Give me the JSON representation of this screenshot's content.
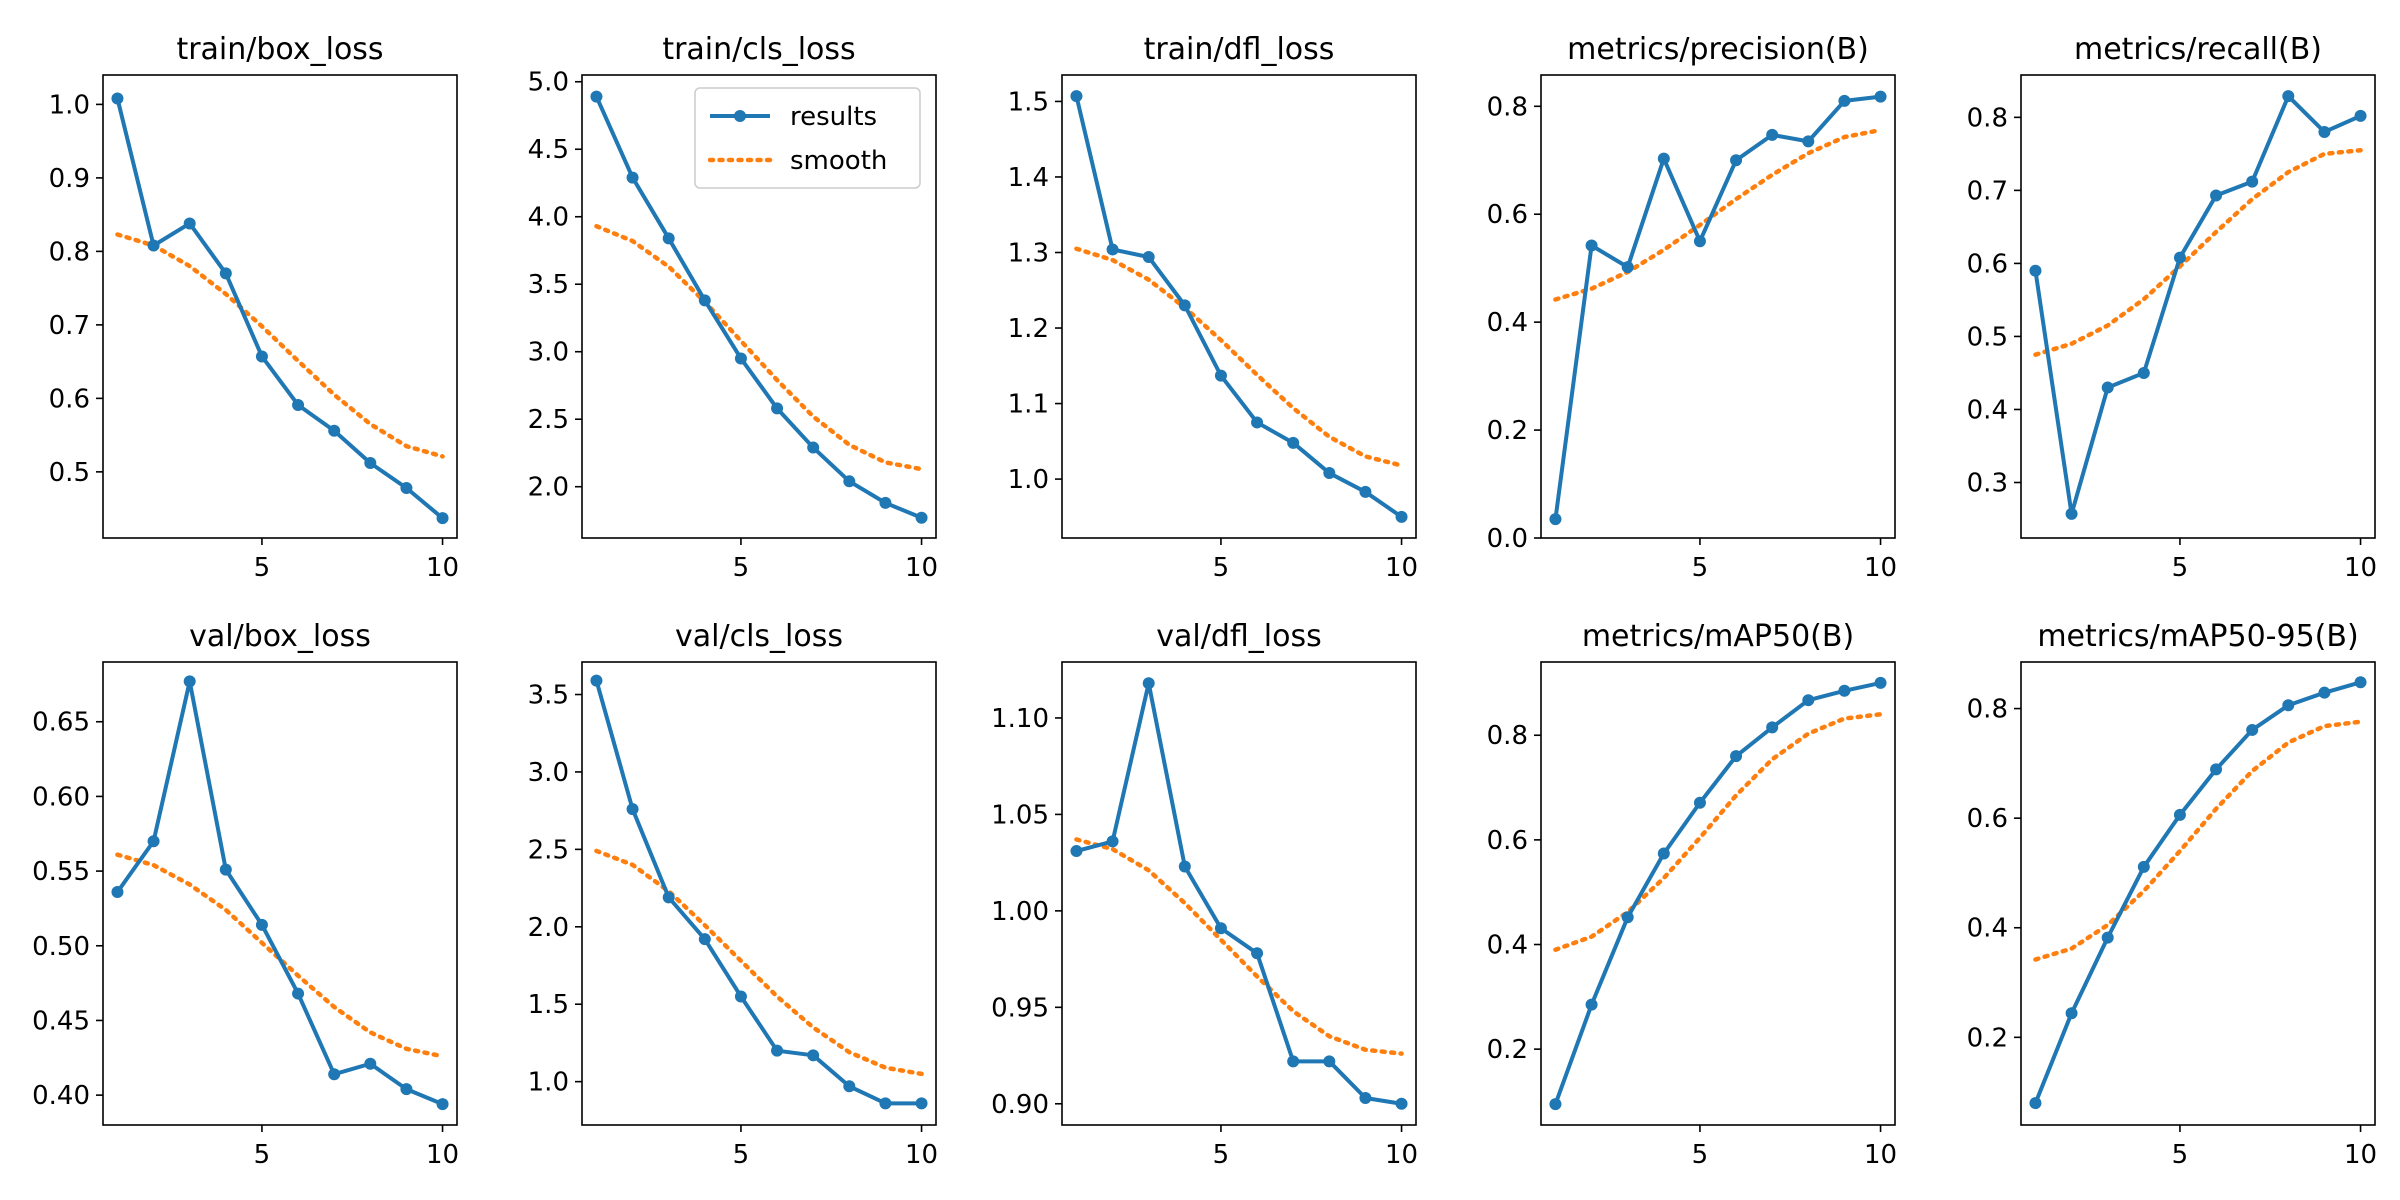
{
  "colors": {
    "results": "#1f77b4",
    "smooth": "#ff7f0e"
  },
  "legend": {
    "entries": [
      "results",
      "smooth"
    ],
    "placement": "upper-right of train/cls_loss"
  },
  "chart_data": [
    {
      "type": "line",
      "title": "train/box_loss",
      "x": [
        1,
        2,
        3,
        4,
        5,
        6,
        7,
        8,
        9,
        10
      ],
      "xlim": [
        0.6,
        10.4
      ],
      "xticks": [
        5,
        10
      ],
      "ylim": [
        0.41,
        1.04
      ],
      "yticks": [
        0.5,
        0.6,
        0.7,
        0.8,
        0.9,
        1.0
      ],
      "ytick_labels": [
        "0.5",
        "0.6",
        "0.7",
        "0.8",
        "0.9",
        "1.0"
      ],
      "series": [
        {
          "name": "results",
          "values": [
            1.008,
            0.808,
            0.838,
            0.77,
            0.657,
            0.591,
            0.556,
            0.512,
            0.478,
            0.437
          ]
        },
        {
          "name": "smooth",
          "values": [
            0.823,
            0.808,
            0.78,
            0.742,
            0.698,
            0.651,
            0.605,
            0.565,
            0.535,
            0.521
          ]
        }
      ]
    },
    {
      "type": "line",
      "title": "train/cls_loss",
      "x": [
        1,
        2,
        3,
        4,
        5,
        6,
        7,
        8,
        9,
        10
      ],
      "xlim": [
        0.6,
        10.4
      ],
      "xticks": [
        5,
        10
      ],
      "ylim": [
        1.62,
        5.05
      ],
      "yticks": [
        2.0,
        2.5,
        3.0,
        3.5,
        4.0,
        4.5,
        5.0
      ],
      "ytick_labels": [
        "2.0",
        "2.5",
        "3.0",
        "3.5",
        "4.0",
        "4.5",
        "5.0"
      ],
      "series": [
        {
          "name": "results",
          "values": [
            4.89,
            4.29,
            3.84,
            3.38,
            2.95,
            2.58,
            2.29,
            2.04,
            1.88,
            1.77
          ]
        },
        {
          "name": "smooth",
          "values": [
            3.93,
            3.82,
            3.63,
            3.37,
            3.08,
            2.79,
            2.52,
            2.31,
            2.18,
            2.13
          ]
        }
      ]
    },
    {
      "type": "line",
      "title": "train/dfl_loss",
      "x": [
        1,
        2,
        3,
        4,
        5,
        6,
        7,
        8,
        9,
        10
      ],
      "xlim": [
        0.6,
        10.4
      ],
      "xticks": [
        5,
        10
      ],
      "ylim": [
        0.922,
        1.535
      ],
      "yticks": [
        1.0,
        1.1,
        1.2,
        1.3,
        1.4,
        1.5
      ],
      "ytick_labels": [
        "1.0",
        "1.1",
        "1.2",
        "1.3",
        "1.4",
        "1.5"
      ],
      "series": [
        {
          "name": "results",
          "values": [
            1.507,
            1.304,
            1.294,
            1.23,
            1.137,
            1.075,
            1.048,
            1.008,
            0.983,
            0.95
          ]
        },
        {
          "name": "smooth",
          "values": [
            1.305,
            1.29,
            1.264,
            1.227,
            1.184,
            1.138,
            1.094,
            1.056,
            1.03,
            1.018
          ]
        }
      ]
    },
    {
      "type": "line",
      "title": "metrics/precision(B)",
      "x": [
        1,
        2,
        3,
        4,
        5,
        6,
        7,
        8,
        9,
        10
      ],
      "xlim": [
        0.6,
        10.4
      ],
      "xticks": [
        5,
        10
      ],
      "ylim": [
        0.0,
        0.858
      ],
      "yticks": [
        0.0,
        0.2,
        0.4,
        0.6,
        0.8
      ],
      "ytick_labels": [
        "0.0",
        "0.2",
        "0.4",
        "0.6",
        "0.8"
      ],
      "series": [
        {
          "name": "results",
          "values": [
            0.035,
            0.542,
            0.502,
            0.703,
            0.55,
            0.7,
            0.747,
            0.735,
            0.81,
            0.818
          ]
        },
        {
          "name": "smooth",
          "values": [
            0.442,
            0.462,
            0.493,
            0.534,
            0.58,
            0.628,
            0.673,
            0.713,
            0.743,
            0.756
          ]
        }
      ]
    },
    {
      "type": "line",
      "title": "metrics/recall(B)",
      "x": [
        1,
        2,
        3,
        4,
        5,
        6,
        7,
        8,
        9,
        10
      ],
      "xlim": [
        0.6,
        10.4
      ],
      "xticks": [
        5,
        10
      ],
      "ylim": [
        0.224,
        0.858
      ],
      "yticks": [
        0.3,
        0.4,
        0.5,
        0.6,
        0.7,
        0.8
      ],
      "ytick_labels": [
        "0.3",
        "0.4",
        "0.5",
        "0.6",
        "0.7",
        "0.8"
      ],
      "series": [
        {
          "name": "results",
          "values": [
            0.59,
            0.257,
            0.43,
            0.45,
            0.608,
            0.693,
            0.712,
            0.829,
            0.78,
            0.802
          ]
        },
        {
          "name": "smooth",
          "values": [
            0.475,
            0.49,
            0.515,
            0.551,
            0.596,
            0.643,
            0.688,
            0.725,
            0.75,
            0.755
          ]
        }
      ]
    },
    {
      "type": "line",
      "title": "val/box_loss",
      "x": [
        1,
        2,
        3,
        4,
        5,
        6,
        7,
        8,
        9,
        10
      ],
      "xlim": [
        0.6,
        10.4
      ],
      "xticks": [
        5,
        10
      ],
      "ylim": [
        0.38,
        0.69
      ],
      "yticks": [
        0.4,
        0.45,
        0.5,
        0.55,
        0.6,
        0.65
      ],
      "ytick_labels": [
        "0.40",
        "0.45",
        "0.50",
        "0.55",
        "0.60",
        "0.65"
      ],
      "series": [
        {
          "name": "results",
          "values": [
            0.536,
            0.57,
            0.677,
            0.551,
            0.514,
            0.468,
            0.414,
            0.421,
            0.404,
            0.394
          ]
        },
        {
          "name": "smooth",
          "values": [
            0.561,
            0.554,
            0.541,
            0.524,
            0.502,
            0.48,
            0.459,
            0.442,
            0.431,
            0.426
          ]
        }
      ]
    },
    {
      "type": "line",
      "title": "val/cls_loss",
      "x": [
        1,
        2,
        3,
        4,
        5,
        6,
        7,
        8,
        9,
        10
      ],
      "xlim": [
        0.6,
        10.4
      ],
      "xticks": [
        5,
        10
      ],
      "ylim": [
        0.72,
        3.71
      ],
      "yticks": [
        1.0,
        1.5,
        2.0,
        2.5,
        3.0,
        3.5
      ],
      "ytick_labels": [
        "1.0",
        "1.5",
        "2.0",
        "2.5",
        "3.0",
        "3.5"
      ],
      "series": [
        {
          "name": "results",
          "values": [
            3.59,
            2.76,
            2.19,
            1.92,
            1.55,
            1.2,
            1.17,
            0.97,
            0.86,
            0.86
          ]
        },
        {
          "name": "smooth",
          "values": [
            2.49,
            2.4,
            2.23,
            2.01,
            1.78,
            1.55,
            1.35,
            1.19,
            1.09,
            1.05
          ]
        }
      ]
    },
    {
      "type": "line",
      "title": "val/dfl_loss",
      "x": [
        1,
        2,
        3,
        4,
        5,
        6,
        7,
        8,
        9,
        10
      ],
      "xlim": [
        0.6,
        10.4
      ],
      "xticks": [
        5,
        10
      ],
      "ylim": [
        0.889,
        1.129
      ],
      "yticks": [
        0.9,
        0.95,
        1.0,
        1.05,
        1.1
      ],
      "ytick_labels": [
        "0.90",
        "0.95",
        "1.00",
        "1.05",
        "1.10"
      ],
      "series": [
        {
          "name": "results",
          "values": [
            1.031,
            1.036,
            1.118,
            1.023,
            0.991,
            0.978,
            0.922,
            0.922,
            0.903,
            0.9
          ]
        },
        {
          "name": "smooth",
          "values": [
            1.037,
            1.032,
            1.021,
            1.004,
            0.985,
            0.966,
            0.948,
            0.935,
            0.928,
            0.926
          ]
        }
      ]
    },
    {
      "type": "line",
      "title": "metrics/mAP50(B)",
      "x": [
        1,
        2,
        3,
        4,
        5,
        6,
        7,
        8,
        9,
        10
      ],
      "xlim": [
        0.6,
        10.4
      ],
      "xticks": [
        5,
        10
      ],
      "ylim": [
        0.055,
        0.94
      ],
      "yticks": [
        0.2,
        0.4,
        0.6,
        0.8
      ],
      "ytick_labels": [
        "0.2",
        "0.4",
        "0.6",
        "0.8"
      ],
      "series": [
        {
          "name": "results",
          "values": [
            0.095,
            0.285,
            0.452,
            0.574,
            0.671,
            0.76,
            0.815,
            0.867,
            0.885,
            0.9
          ]
        },
        {
          "name": "smooth",
          "values": [
            0.39,
            0.415,
            0.462,
            0.527,
            0.604,
            0.685,
            0.754,
            0.803,
            0.832,
            0.84
          ]
        }
      ]
    },
    {
      "type": "line",
      "title": "metrics/mAP50-95(B)",
      "x": [
        1,
        2,
        3,
        4,
        5,
        6,
        7,
        8,
        9,
        10
      ],
      "xlim": [
        0.6,
        10.4
      ],
      "xticks": [
        5,
        10
      ],
      "ylim": [
        0.04,
        0.885
      ],
      "yticks": [
        0.2,
        0.4,
        0.6,
        0.8
      ],
      "ytick_labels": [
        "0.2",
        "0.4",
        "0.6",
        "0.8"
      ],
      "series": [
        {
          "name": "results",
          "values": [
            0.08,
            0.244,
            0.382,
            0.511,
            0.606,
            0.689,
            0.761,
            0.806,
            0.829,
            0.848
          ]
        },
        {
          "name": "smooth",
          "values": [
            0.342,
            0.362,
            0.405,
            0.467,
            0.54,
            0.617,
            0.686,
            0.738,
            0.768,
            0.776
          ]
        }
      ]
    }
  ]
}
